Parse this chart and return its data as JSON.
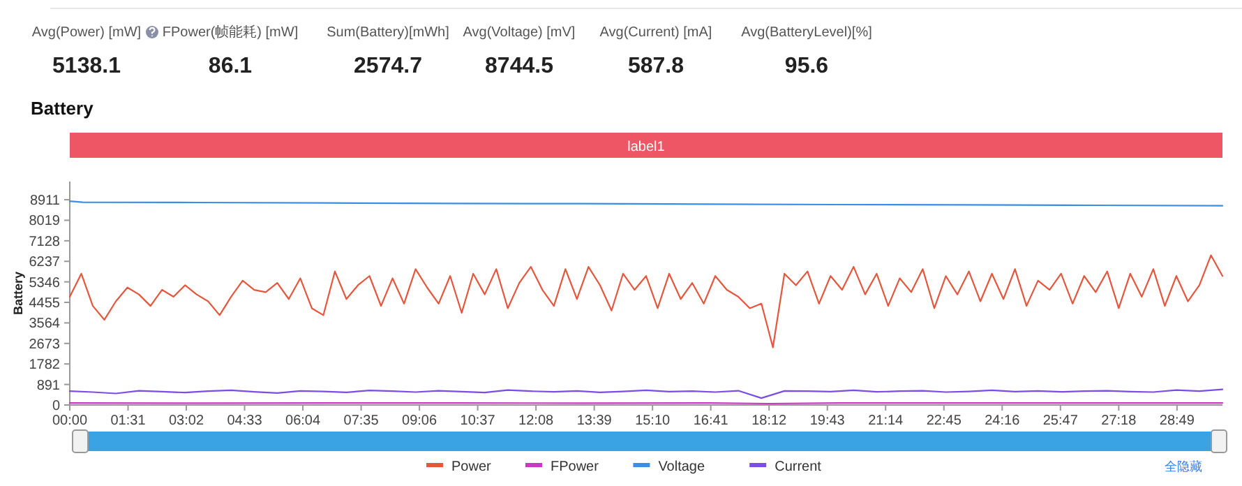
{
  "chart_data": [
    {
      "type": "other",
      "categories": [
        "Avg(Power) [mW]",
        "FPower(帧能耗) [mW]",
        "Sum(Battery)[mWh]",
        "Avg(Voltage) [mV]",
        "Avg(Current) [mA]",
        "Avg(BatteryLevel)[%]"
      ],
      "values": [
        5138.1,
        86.1,
        2574.7,
        8744.5,
        587.8,
        95.6
      ],
      "data_labels": true
    },
    {
      "type": "line",
      "title": "Battery",
      "ylabel": "Battery",
      "legend": "bottom",
      "marker": "none",
      "line_style": "solid",
      "xlim": [
        0,
        1800
      ],
      "ylim": [
        0,
        9700
      ],
      "xticks": [
        {
          "value": 0,
          "label": "00:00"
        },
        {
          "value": 91,
          "label": "01:31"
        },
        {
          "value": 182,
          "label": "03:02"
        },
        {
          "value": 273,
          "label": "04:33"
        },
        {
          "value": 364,
          "label": "06:04"
        },
        {
          "value": 455,
          "label": "07:35"
        },
        {
          "value": 546,
          "label": "09:06"
        },
        {
          "value": 637,
          "label": "10:37"
        },
        {
          "value": 728,
          "label": "12:08"
        },
        {
          "value": 819,
          "label": "13:39"
        },
        {
          "value": 910,
          "label": "15:10"
        },
        {
          "value": 1001,
          "label": "16:41"
        },
        {
          "value": 1092,
          "label": "18:12"
        },
        {
          "value": 1183,
          "label": "19:43"
        },
        {
          "value": 1274,
          "label": "21:14"
        },
        {
          "value": 1365,
          "label": "22:45"
        },
        {
          "value": 1456,
          "label": "24:16"
        },
        {
          "value": 1547,
          "label": "25:47"
        },
        {
          "value": 1638,
          "label": "27:18"
        },
        {
          "value": 1729,
          "label": "28:49"
        }
      ],
      "yticks": [
        0,
        891,
        1782,
        2673,
        3564,
        4455,
        5346,
        6237,
        7128,
        8019,
        8911
      ],
      "annotations": [
        "label1",
        "全隐藏"
      ],
      "series": [
        {
          "name": "Power",
          "color": "#e4573d",
          "x": [
            0,
            18,
            36,
            54,
            72,
            90,
            108,
            126,
            144,
            162,
            180,
            198,
            216,
            234,
            252,
            270,
            288,
            306,
            324,
            342,
            360,
            378,
            396,
            414,
            432,
            450,
            468,
            486,
            504,
            522,
            540,
            558,
            576,
            594,
            612,
            630,
            648,
            666,
            684,
            702,
            720,
            738,
            756,
            774,
            792,
            810,
            828,
            846,
            864,
            882,
            900,
            918,
            936,
            954,
            972,
            990,
            1008,
            1026,
            1044,
            1062,
            1080,
            1098,
            1116,
            1134,
            1152,
            1170,
            1188,
            1206,
            1224,
            1242,
            1260,
            1278,
            1296,
            1314,
            1332,
            1350,
            1368,
            1386,
            1404,
            1422,
            1440,
            1458,
            1476,
            1494,
            1512,
            1530,
            1548,
            1566,
            1584,
            1602,
            1620,
            1638,
            1656,
            1674,
            1692,
            1710,
            1728,
            1746,
            1764,
            1782,
            1800
          ],
          "values": [
            4700,
            5700,
            4300,
            3700,
            4500,
            5100,
            4800,
            4300,
            5000,
            4700,
            5200,
            4800,
            4500,
            3900,
            4700,
            5400,
            5000,
            4900,
            5300,
            4600,
            5500,
            4200,
            3900,
            5800,
            4600,
            5200,
            5600,
            4300,
            5500,
            4400,
            5900,
            5100,
            4400,
            5600,
            4000,
            5700,
            4800,
            5900,
            4200,
            5300,
            6000,
            5000,
            4300,
            5900,
            4600,
            6000,
            5200,
            4100,
            5700,
            5000,
            5600,
            4200,
            5700,
            4600,
            5300,
            4400,
            5600,
            5000,
            4700,
            4200,
            4400,
            2500,
            5700,
            5200,
            5800,
            4400,
            5600,
            5000,
            6000,
            4800,
            5700,
            4300,
            5500,
            4900,
            5900,
            4200,
            5600,
            4800,
            5800,
            4500,
            5700,
            4600,
            5900,
            4300,
            5400,
            5000,
            5700,
            4400,
            5600,
            4900,
            5800,
            4200,
            5700,
            4700,
            5900,
            4300,
            5600,
            4500,
            5200,
            6500,
            5600
          ]
        },
        {
          "name": "FPower",
          "color": "#c838c0",
          "x": [
            0,
            200,
            400,
            600,
            800,
            1000,
            1092,
            1200,
            1400,
            1600,
            1800
          ],
          "values": [
            90,
            80,
            90,
            90,
            80,
            90,
            60,
            90,
            90,
            90,
            90
          ]
        },
        {
          "name": "Voltage",
          "color": "#3a8ee6",
          "x": [
            0,
            20,
            200,
            400,
            600,
            800,
            1000,
            1200,
            1400,
            1600,
            1800
          ],
          "values": [
            8850,
            8800,
            8790,
            8770,
            8750,
            8740,
            8720,
            8700,
            8690,
            8670,
            8650
          ]
        },
        {
          "name": "Current",
          "color": "#7b4ce6",
          "x": [
            0,
            36,
            72,
            108,
            144,
            180,
            216,
            252,
            288,
            324,
            360,
            396,
            432,
            468,
            504,
            540,
            576,
            612,
            648,
            684,
            720,
            756,
            792,
            828,
            864,
            900,
            936,
            972,
            1008,
            1044,
            1080,
            1116,
            1152,
            1188,
            1224,
            1260,
            1296,
            1332,
            1368,
            1404,
            1440,
            1476,
            1512,
            1548,
            1584,
            1620,
            1656,
            1692,
            1728,
            1764,
            1800
          ],
          "values": [
            600,
            560,
            500,
            620,
            580,
            540,
            600,
            640,
            570,
            520,
            610,
            590,
            550,
            630,
            600,
            560,
            620,
            580,
            540,
            650,
            600,
            570,
            610,
            550,
            590,
            640,
            580,
            600,
            560,
            620,
            300,
            610,
            600,
            580,
            640,
            570,
            600,
            620,
            560,
            590,
            640,
            580,
            610,
            570,
            600,
            620,
            580,
            560,
            650,
            600,
            680
          ]
        }
      ]
    }
  ]
}
